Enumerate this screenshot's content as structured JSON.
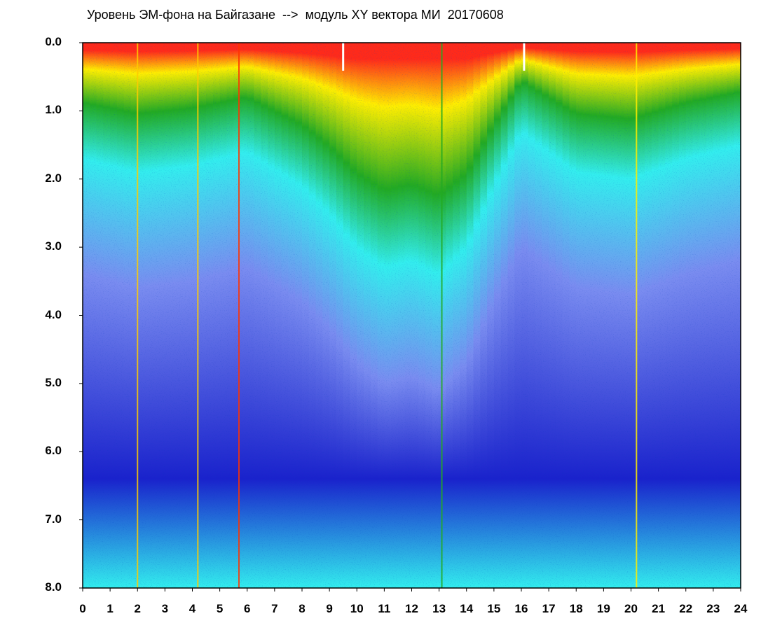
{
  "chart_data": {
    "type": "heatmap",
    "title": "Уровень ЭМ-фона на Байгазане  -->  модуль XY вектора МИ  20170608",
    "xlabel": "",
    "ylabel": "",
    "xlim": [
      0,
      24
    ],
    "ylim": [
      8.0,
      0.0
    ],
    "x_ticks": [
      "0",
      "1",
      "2",
      "3",
      "4",
      "5",
      "6",
      "7",
      "8",
      "9",
      "10",
      "11",
      "12",
      "13",
      "14",
      "15",
      "16",
      "17",
      "18",
      "19",
      "20",
      "21",
      "22",
      "23",
      "24"
    ],
    "y_ticks": [
      "0.0",
      "1.0",
      "2.0",
      "3.0",
      "4.0",
      "5.0",
      "6.0",
      "7.0",
      "8.0"
    ],
    "colors": {
      "high": "#ff2a1a",
      "upper": "#ffee00",
      "mid": "#22aa22",
      "low": "#33eeee",
      "lower": "#7a8cf0",
      "lowest": "#1a22cc"
    },
    "intensity_front_hours": [
      0,
      2,
      4,
      6,
      8,
      9,
      10,
      11,
      12,
      13,
      14,
      15,
      16,
      17,
      18,
      20,
      22,
      24
    ],
    "intensity_front_depth": [
      1.1,
      1.3,
      1.2,
      1.0,
      1.5,
      1.9,
      2.4,
      2.7,
      2.6,
      2.8,
      2.4,
      1.5,
      0.7,
      1.0,
      1.3,
      1.4,
      1.1,
      0.9
    ],
    "vertical_lines": [
      {
        "x": 2.0,
        "color": "#ffcc00"
      },
      {
        "x": 4.2,
        "color": "#ffcc00"
      },
      {
        "x": 5.7,
        "color": "#ff3300"
      },
      {
        "x": 13.1,
        "color": "#22aa22"
      },
      {
        "x": 20.2,
        "color": "#ffee00"
      }
    ],
    "gaps": [
      {
        "x": 9.5
      },
      {
        "x": 16.1
      }
    ]
  }
}
